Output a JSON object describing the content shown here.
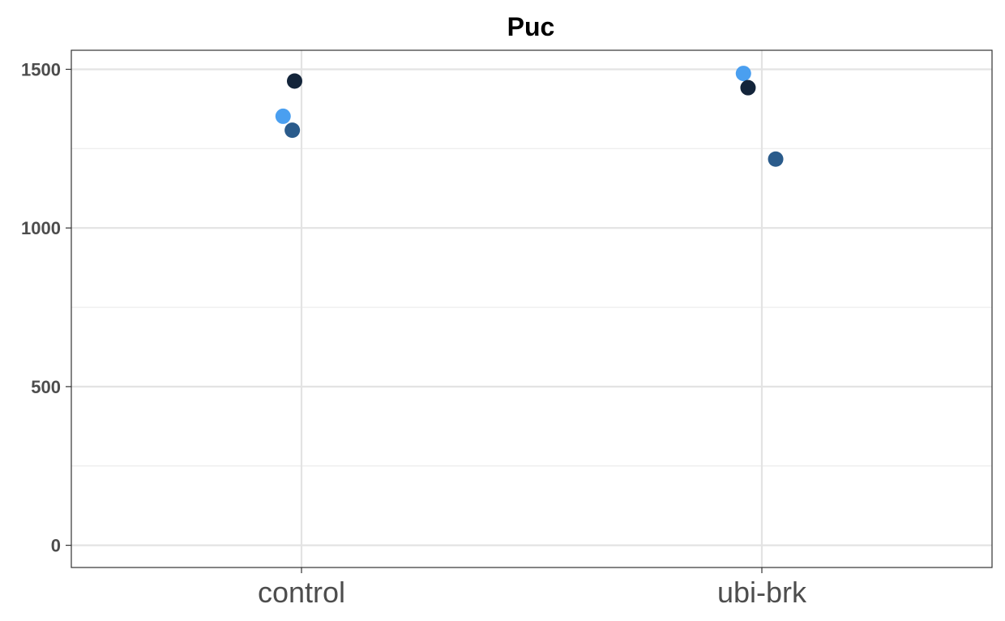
{
  "chart_data": {
    "type": "scatter",
    "title": "Puc",
    "xlabel": "",
    "ylabel": "",
    "categories": [
      "control",
      "ubi-brk"
    ],
    "ylim": [
      -70,
      1560
    ],
    "yticks": [
      0,
      500,
      1000,
      1500
    ],
    "grid": true,
    "legend": "none",
    "points": [
      {
        "category": "control",
        "jitter": -0.04,
        "value": 1352,
        "color": "#4a9ff0"
      },
      {
        "category": "control",
        "jitter": -0.02,
        "value": 1308,
        "color": "#2a5b8b"
      },
      {
        "category": "control",
        "jitter": -0.015,
        "value": 1463,
        "color": "#13243a"
      },
      {
        "category": "ubi-brk",
        "jitter": -0.04,
        "value": 1487,
        "color": "#4a9ff0"
      },
      {
        "category": "ubi-brk",
        "jitter": -0.03,
        "value": 1442,
        "color": "#13243a"
      },
      {
        "category": "ubi-brk",
        "jitter": 0.03,
        "value": 1217,
        "color": "#2a5b8b"
      }
    ]
  }
}
